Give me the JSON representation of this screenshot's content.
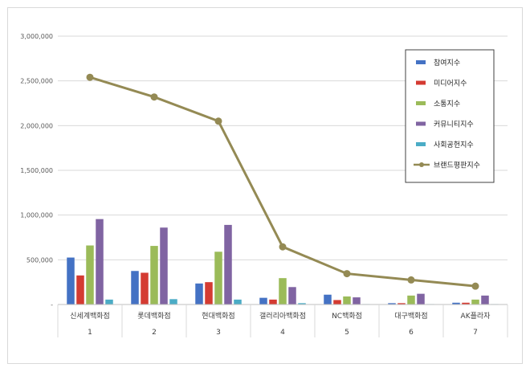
{
  "chart_data": {
    "type": "bar",
    "title": "",
    "xlabel": "",
    "ylabel": "",
    "ylim": [
      0,
      3000000
    ],
    "yticks": [
      0,
      500000,
      1000000,
      1500000,
      2000000,
      2500000,
      3000000
    ],
    "ytick_labels": [
      "-",
      "500,000",
      "1,000,000",
      "1,500,000",
      "2,000,000",
      "2,500,000",
      "3,000,000"
    ],
    "grid": true,
    "legend_position": "top-right",
    "categories": [
      "신세계백화점",
      "롯데백화점",
      "현대백화점",
      "갤러리아백화점",
      "NC백화점",
      "대구백화점",
      "AK플라자"
    ],
    "ranks": [
      "1",
      "2",
      "3",
      "4",
      "5",
      "6",
      "7"
    ],
    "series": [
      {
        "name": "참여지수",
        "kind": "bar",
        "color": "#4472c4",
        "values": [
          525000,
          375000,
          235000,
          75000,
          110000,
          15000,
          20000
        ]
      },
      {
        "name": "미디어지수",
        "kind": "bar",
        "color": "#d43b32",
        "values": [
          325000,
          355000,
          250000,
          55000,
          50000,
          15000,
          20000
        ]
      },
      {
        "name": "소통지수",
        "kind": "bar",
        "color": "#9bbb59",
        "values": [
          660000,
          655000,
          590000,
          295000,
          90000,
          100000,
          55000
        ]
      },
      {
        "name": "커뮤니티지수",
        "kind": "bar",
        "color": "#8064a2",
        "values": [
          955000,
          860000,
          890000,
          195000,
          80000,
          120000,
          100000
        ]
      },
      {
        "name": "사회공헌지수",
        "kind": "bar",
        "color": "#4bacc6",
        "values": [
          55000,
          60000,
          55000,
          15000,
          5000,
          5000,
          5000
        ]
      },
      {
        "name": "브랜드평판지수",
        "kind": "line",
        "color": "#948a54",
        "values": [
          2540000,
          2320000,
          2050000,
          645000,
          345000,
          275000,
          205000
        ]
      }
    ]
  }
}
